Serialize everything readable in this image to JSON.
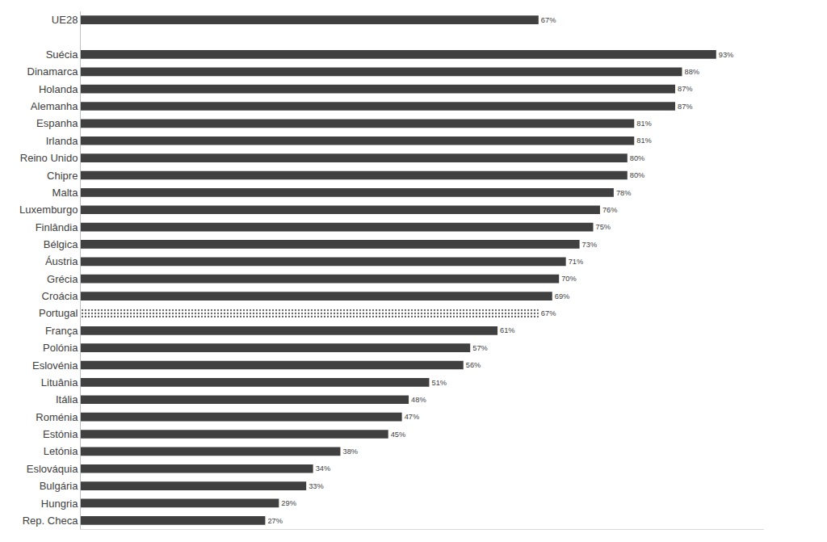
{
  "chart_data": {
    "type": "bar",
    "orientation": "horizontal",
    "categories": [
      "UE28",
      null,
      "Suécia",
      "Dinamarca",
      "Holanda",
      "Alemanha",
      "Espanha",
      "Irlanda",
      "Reino Unido",
      "Chipre",
      "Malta",
      "Luxemburgo",
      "Finlândia",
      "Bélgica",
      "Áustria",
      "Grécia",
      "Croácia",
      "Portugal",
      "França",
      "Polónia",
      "Eslovénia",
      "Lituânia",
      "Itália",
      "Roménia",
      "Estónia",
      "Letónia",
      "Eslováquia",
      "Bulgária",
      "Hungria",
      "Rep. Checa"
    ],
    "values": [
      67,
      null,
      93,
      88,
      87,
      87,
      81,
      81,
      80,
      80,
      78,
      76,
      75,
      73,
      71,
      70,
      69,
      67,
      61,
      57,
      56,
      51,
      48,
      47,
      45,
      38,
      34,
      33,
      29,
      27
    ],
    "value_labels": [
      "67%",
      null,
      "93%",
      "88%",
      "87%",
      "87%",
      "81%",
      "81%",
      "80%",
      "80%",
      "78%",
      "76%",
      "75%",
      "73%",
      "71%",
      "70%",
      "69%",
      "67%",
      "61%",
      "57%",
      "56%",
      "51%",
      "48%",
      "47%",
      "45%",
      "38%",
      "34%",
      "33%",
      "29%",
      "27%"
    ],
    "color": "#404040",
    "colors": [
      "#404040",
      "#404040",
      "#404040",
      "#404040",
      "#404040",
      "#404040",
      "#404040",
      "#404040",
      "#404040",
      "#404040",
      "#404040",
      "#404040",
      "#404040",
      "#404040",
      "#404040",
      "#404040",
      "#404040",
      "#5c5c5c",
      "#404040",
      "#404040",
      "#404040",
      "#404040",
      "#404040",
      "#404040",
      "#404040",
      "#404040",
      "#404040",
      "#404040",
      "#404040",
      "#404040"
    ],
    "xlim": [
      0,
      100
    ],
    "xticks": [],
    "data_labels": true,
    "tick_labels": "y",
    "grid": false
  }
}
